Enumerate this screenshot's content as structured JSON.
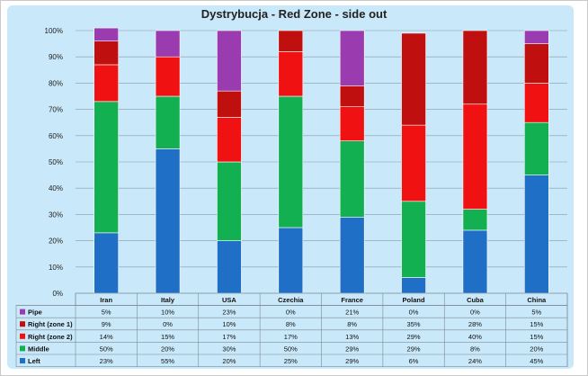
{
  "chart_data": {
    "type": "bar",
    "stacked": true,
    "percent": true,
    "title": "Dystrybucja - Red Zone - side out",
    "categories": [
      "Iran",
      "Italy",
      "USA",
      "Czechia",
      "France",
      "Poland",
      "Cuba",
      "China"
    ],
    "ylim": [
      0,
      100
    ],
    "yticks": [
      "0%",
      "10%",
      "20%",
      "30%",
      "40%",
      "50%",
      "60%",
      "70%",
      "80%",
      "90%",
      "100%"
    ],
    "grid": true,
    "legend": "table-left",
    "series": [
      {
        "name": "Left",
        "color": "#1f6fc6",
        "values": [
          23,
          55,
          20,
          25,
          29,
          6,
          24,
          45
        ],
        "labels": [
          "23%",
          "55%",
          "20%",
          "25%",
          "29%",
          "6%",
          "24%",
          "45%"
        ]
      },
      {
        "name": "Middle",
        "color": "#12b050",
        "values": [
          50,
          20,
          30,
          50,
          29,
          29,
          8,
          20
        ],
        "labels": [
          "50%",
          "20%",
          "30%",
          "50%",
          "29%",
          "29%",
          "8%",
          "20%"
        ]
      },
      {
        "name": "Right (zone 2)",
        "color": "#f01212",
        "values": [
          14,
          15,
          17,
          17,
          13,
          29,
          40,
          15
        ],
        "labels": [
          "14%",
          "15%",
          "17%",
          "17%",
          "13%",
          "29%",
          "40%",
          "15%"
        ]
      },
      {
        "name": "Right (zone 1)",
        "color": "#c00f0f",
        "values": [
          9,
          0,
          10,
          8,
          8,
          35,
          28,
          15
        ],
        "labels": [
          "9%",
          "0%",
          "10%",
          "8%",
          "8%",
          "35%",
          "28%",
          "15%"
        ]
      },
      {
        "name": "Pipe",
        "color": "#9a3bb0",
        "values": [
          5,
          10,
          23,
          0,
          21,
          0,
          0,
          5
        ],
        "labels": [
          "5%",
          "10%",
          "23%",
          "0%",
          "21%",
          "0%",
          "0%",
          "5%"
        ]
      }
    ]
  }
}
